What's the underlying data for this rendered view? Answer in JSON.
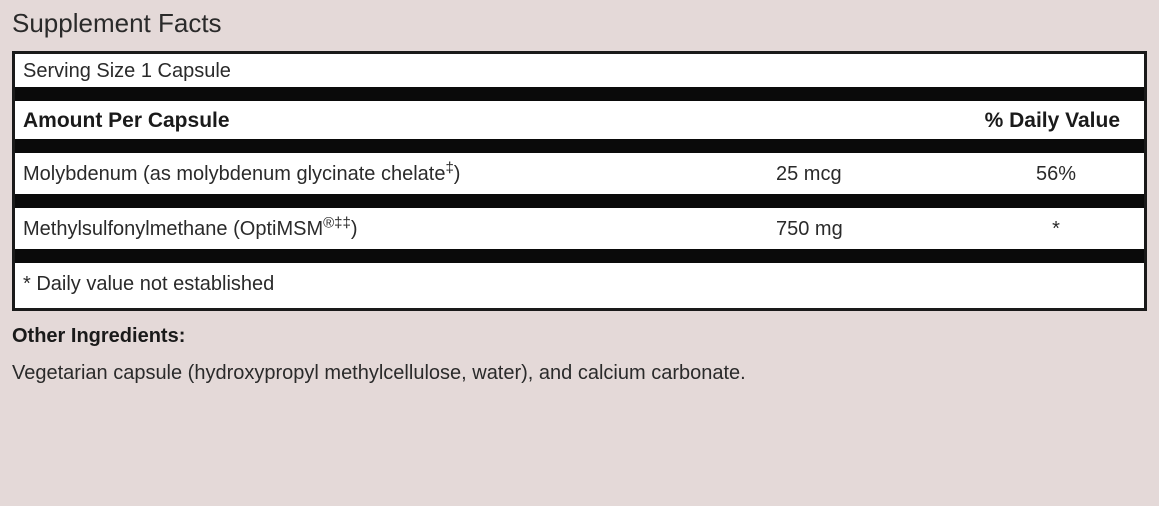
{
  "title": "Supplement Facts",
  "servingSize": "Serving Size 1 Capsule",
  "headers": {
    "left": "Amount Per Capsule",
    "right": "% Daily Value"
  },
  "rows": [
    {
      "name": "Molybdenum (as molybdenum glycinate chelate",
      "nameSuffix": "‡",
      "nameClose": ")",
      "amount": "25 mcg",
      "dv": "56%"
    },
    {
      "name": "Methylsulfonylmethane (OptiMSM",
      "nameSuffix": "®‡‡",
      "nameClose": ")",
      "amount": "750 mg",
      "dv": "*"
    }
  ],
  "footnote": "* Daily value not established",
  "otherIngredientsLabel": "Other Ingredients:",
  "otherIngredientsText": "Vegetarian capsule (hydroxypropyl methylcellulose, water), and calcium carbonate.",
  "styling": {
    "backgroundColor": "#e4d9d8",
    "panelBackground": "#ffffff",
    "borderColor": "#1a1a1a",
    "ruleColor": "#0a0a0a",
    "textColor": "#2a2a2a",
    "titleFontSize": 26,
    "bodyFontSize": 20,
    "headerFontSize": 21,
    "ruleThickness": 14,
    "panelBorderWidth": 3
  }
}
